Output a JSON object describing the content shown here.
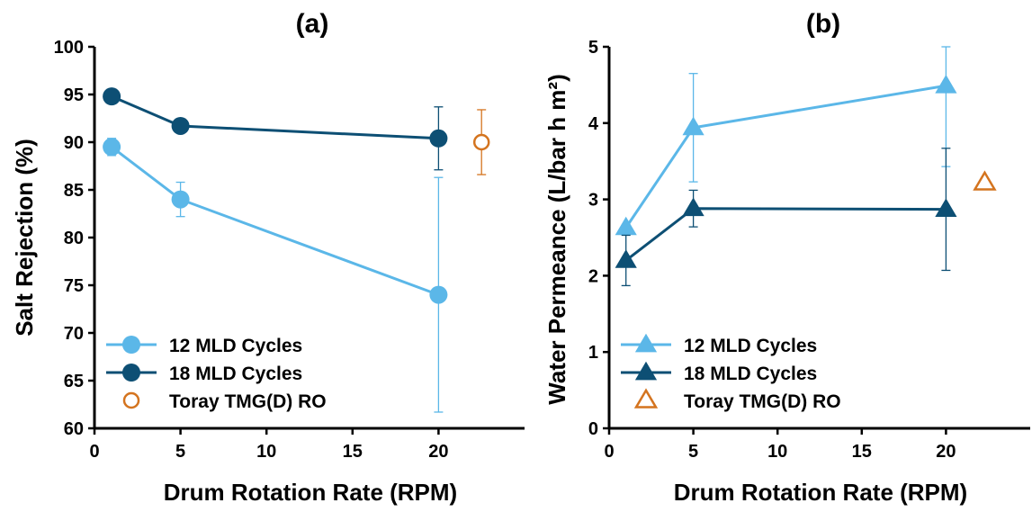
{
  "colors": {
    "light": "#5bb7e8",
    "dark": "#0d4f74",
    "ref": "#d4741f",
    "axis": "#000000"
  },
  "chart_data": [
    {
      "id": "a",
      "type": "line",
      "title": "(a)",
      "xlabel": "Drum Rotation Rate (RPM)",
      "ylabel": "Salt Rejection (%)",
      "xlim": [
        0,
        25
      ],
      "ylim": [
        60,
        100
      ],
      "xticks": [
        0,
        5,
        10,
        15,
        20
      ],
      "yticks": [
        60,
        65,
        70,
        75,
        80,
        85,
        90,
        95,
        100
      ],
      "marker": "circle",
      "legend_position": "bottom-left",
      "series": [
        {
          "name": "12 MLD Cycles",
          "color_key": "light",
          "x": [
            1,
            5,
            20
          ],
          "y": [
            89.5,
            84,
            74
          ],
          "err": [
            0.9,
            1.8,
            12.3
          ]
        },
        {
          "name": "18 MLD Cycles",
          "color_key": "dark",
          "x": [
            1,
            5,
            20
          ],
          "y": [
            94.8,
            91.7,
            90.4
          ],
          "err": [
            0,
            0,
            3.3
          ]
        }
      ],
      "reference": {
        "name": "Toray TMG(D) RO",
        "color_key": "ref",
        "x": 22.5,
        "y": 90,
        "err": 3.4,
        "marker": "open-circle"
      }
    },
    {
      "id": "b",
      "type": "line",
      "title": "(b)",
      "xlabel": "Drum Rotation Rate (RPM)",
      "ylabel": "Water Permeance (L/bar h m²)",
      "xlim": [
        0,
        25
      ],
      "ylim": [
        0,
        5
      ],
      "xticks": [
        0,
        5,
        10,
        15,
        20
      ],
      "yticks": [
        0,
        1,
        2,
        3,
        4,
        5
      ],
      "marker": "triangle",
      "legend_position": "bottom-left",
      "series": [
        {
          "name": "12 MLD Cycles",
          "color_key": "light",
          "x": [
            1,
            5,
            20
          ],
          "y": [
            2.63,
            3.94,
            4.49
          ],
          "err": [
            0,
            0.71,
            1.06
          ]
        },
        {
          "name": "18 MLD Cycles",
          "color_key": "dark",
          "x": [
            1,
            5,
            20
          ],
          "y": [
            2.2,
            2.88,
            2.87
          ],
          "err": [
            0.33,
            0.24,
            0.8
          ]
        }
      ],
      "reference": {
        "name": "Toray TMG(D) RO",
        "color_key": "ref",
        "x": 22.3,
        "y": 3.22,
        "err": 0,
        "marker": "open-triangle"
      }
    }
  ]
}
